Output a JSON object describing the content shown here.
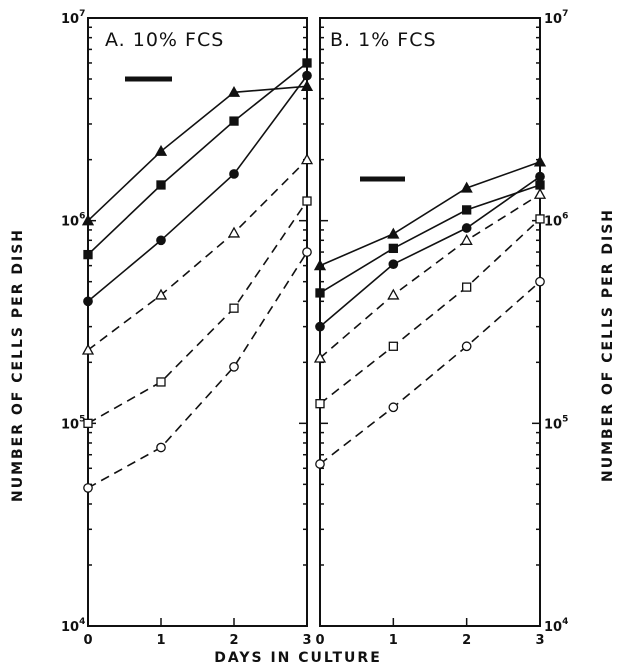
{
  "figure": {
    "xlabel": "DAYS IN CULTURE",
    "ylabel": "NUMBER OF CELLS PER DISH"
  },
  "chart_data": [
    {
      "type": "line",
      "title": "A. 10% FCS",
      "x": [
        0,
        1,
        2,
        3
      ],
      "x_tick_labels": [
        "0",
        "1",
        "2",
        "3"
      ],
      "xlim": [
        0,
        3
      ],
      "ylim": [
        10000,
        10000000
      ],
      "yscale": "log",
      "y_tick_labels": [
        {
          "base": "10",
          "exp": "4"
        },
        {
          "base": "10",
          "exp": "5"
        },
        {
          "base": "10",
          "exp": "6"
        },
        {
          "base": "10",
          "exp": "7"
        }
      ],
      "legend": "none",
      "grid": false,
      "scale_bar": true,
      "series": [
        {
          "marker": "filled-triangle",
          "line": "solid",
          "values": [
            1000000,
            2200000,
            4300000,
            4600000
          ]
        },
        {
          "marker": "filled-square",
          "line": "solid",
          "values": [
            680000,
            1500000,
            3100000,
            6000000
          ]
        },
        {
          "marker": "filled-circle",
          "line": "solid",
          "values": [
            400000,
            800000,
            1700000,
            5200000
          ]
        },
        {
          "marker": "open-triangle",
          "line": "dashed",
          "values": [
            230000,
            430000,
            870000,
            2000000
          ]
        },
        {
          "marker": "open-square",
          "line": "dashed",
          "values": [
            100000,
            160000,
            370000,
            1250000
          ]
        },
        {
          "marker": "open-circle",
          "line": "dashed",
          "values": [
            48000,
            76000,
            190000,
            700000
          ]
        }
      ]
    },
    {
      "type": "line",
      "title": "B. 1% FCS",
      "x": [
        0,
        1,
        2,
        3
      ],
      "x_tick_labels": [
        "0",
        "1",
        "2",
        "3"
      ],
      "xlim": [
        0,
        3
      ],
      "ylim": [
        10000,
        10000000
      ],
      "yscale": "log",
      "y_tick_labels": [
        {
          "base": "10",
          "exp": "4"
        },
        {
          "base": "10",
          "exp": "5"
        },
        {
          "base": "10",
          "exp": "6"
        },
        {
          "base": "10",
          "exp": "7"
        }
      ],
      "legend": "none",
      "grid": false,
      "scale_bar": true,
      "series": [
        {
          "marker": "filled-triangle",
          "line": "solid",
          "values": [
            600000,
            860000,
            1450000,
            1950000
          ]
        },
        {
          "marker": "filled-square",
          "line": "solid",
          "values": [
            440000,
            730000,
            1130000,
            1500000
          ]
        },
        {
          "marker": "filled-circle",
          "line": "solid",
          "values": [
            300000,
            610000,
            920000,
            1650000
          ]
        },
        {
          "marker": "open-triangle",
          "line": "dashed",
          "values": [
            210000,
            430000,
            800000,
            1350000
          ]
        },
        {
          "marker": "open-square",
          "line": "dashed",
          "values": [
            125000,
            240000,
            470000,
            1020000
          ]
        },
        {
          "marker": "open-circle",
          "line": "dashed",
          "values": [
            63000,
            120000,
            240000,
            500000
          ]
        }
      ]
    }
  ]
}
